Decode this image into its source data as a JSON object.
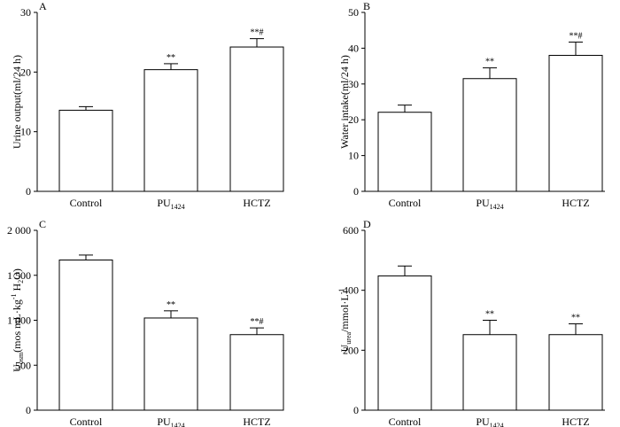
{
  "chart_data": [
    {
      "type": "bar",
      "panel": "A",
      "categories": [
        "Control",
        "PU",
        "HCTZ"
      ],
      "category_subscripts": [
        "",
        "1424",
        ""
      ],
      "values": [
        13.6,
        20.4,
        24.2
      ],
      "errors": [
        0.6,
        1.0,
        1.4
      ],
      "significance": [
        "",
        "**",
        "**#"
      ],
      "ylabel": "Urine output(ml/24 h)",
      "ylim": [
        0,
        30
      ],
      "yticks": [
        0,
        10,
        20,
        30
      ],
      "ytick_labels": [
        "0",
        "10",
        "20",
        "30"
      ]
    },
    {
      "type": "bar",
      "panel": "B",
      "categories": [
        "Control",
        "PU",
        "HCTZ"
      ],
      "category_subscripts": [
        "",
        "1424",
        ""
      ],
      "values": [
        22.1,
        31.5,
        38.0
      ],
      "errors": [
        2.0,
        3.0,
        3.7
      ],
      "significance": [
        "",
        "**",
        "**#"
      ],
      "ylabel": "Water intake(ml/24 h)",
      "ylim": [
        0,
        50
      ],
      "yticks": [
        0,
        10,
        20,
        30,
        40,
        50
      ],
      "ytick_labels": [
        "0",
        "10",
        "20",
        "30",
        "40",
        "50"
      ]
    },
    {
      "type": "bar",
      "panel": "C",
      "categories": [
        "Control",
        "PU",
        "HCTZ"
      ],
      "category_subscripts": [
        "",
        "1424",
        ""
      ],
      "values": [
        1670,
        1025,
        840
      ],
      "errors": [
        55,
        80,
        75
      ],
      "significance": [
        "",
        "**",
        "**#"
      ],
      "ylabel": "U(mos mL·kg H₂O)",
      "ylabel_parts": {
        "main": "U",
        "sub": "osm",
        "rest": "(mos mL·kg",
        "sup": "-1",
        "tail": "H",
        "sub2": "2",
        "end": "O)"
      },
      "ylim": [
        0,
        2000
      ],
      "yticks": [
        0,
        500,
        1000,
        1500,
        2000
      ],
      "ytick_labels": [
        "0",
        "500",
        "1 000",
        "1 500",
        "2 000"
      ]
    },
    {
      "type": "bar",
      "panel": "D",
      "categories": [
        "Control",
        "PU",
        "HCTZ"
      ],
      "category_subscripts": [
        "",
        "1424",
        ""
      ],
      "values": [
        448,
        252,
        252
      ],
      "errors": [
        33,
        48,
        36
      ],
      "significance": [
        "",
        "**",
        "**"
      ],
      "ylabel": "U/mmol·L",
      "ylabel_parts": {
        "main": "U",
        "sub": "urea",
        "rest": "/mmol·L",
        "sup": "-1"
      },
      "ylim": [
        0,
        600
      ],
      "yticks": [
        0,
        200,
        400,
        600
      ],
      "ytick_labels": [
        "0",
        "200",
        "400",
        "600"
      ]
    }
  ]
}
